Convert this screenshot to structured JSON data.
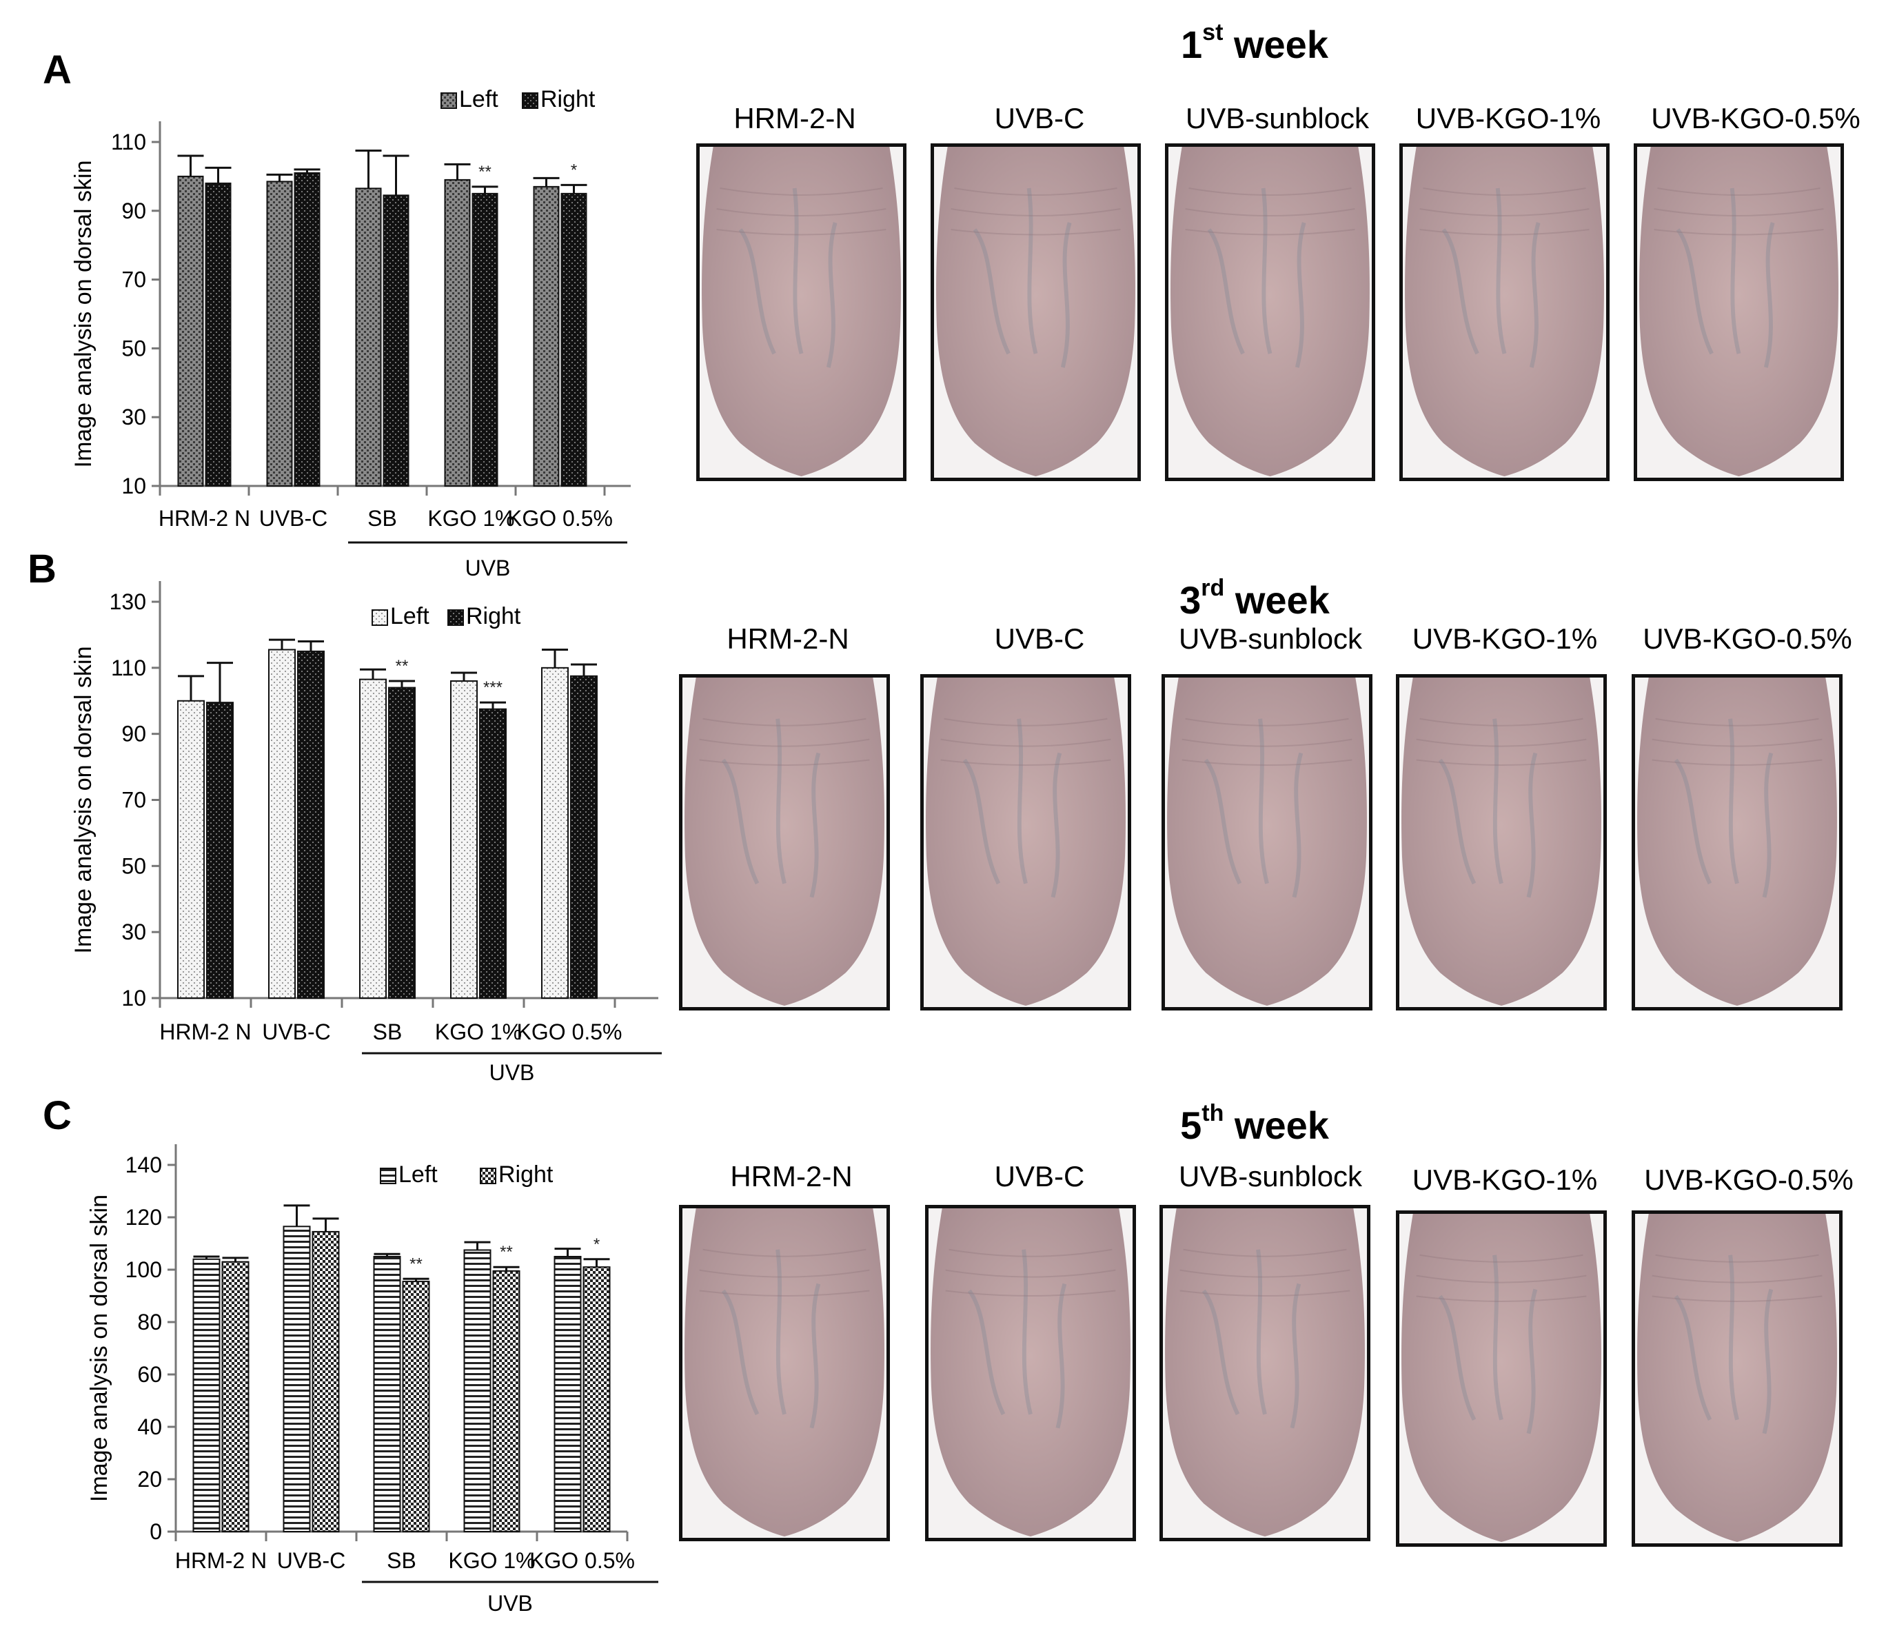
{
  "panels": [
    {
      "letter": "A",
      "week_title": {
        "number": "1",
        "suffix": "st",
        "word": " week"
      },
      "photo_labels": [
        "HRM-2-N",
        "UVB-C",
        "UVB-sunblock",
        "UVB-KGO-1%",
        "UVB-KGO-0.5%"
      ]
    },
    {
      "letter": "B",
      "week_title": {
        "number": "3",
        "suffix": "rd",
        "word": " week"
      },
      "photo_labels": [
        "HRM-2-N",
        "UVB-C",
        "UVB-sunblock",
        "UVB-KGO-1%",
        "UVB-KGO-0.5%"
      ]
    },
    {
      "letter": "C",
      "week_title": {
        "number": "5",
        "suffix": "th",
        "word": " week"
      },
      "photo_labels": [
        "HRM-2-N",
        "UVB-C",
        "UVB-sunblock",
        "UVB-KGO-1%",
        "UVB-KGO-0.5%"
      ]
    }
  ],
  "colors": {
    "skin": "#c9aeae",
    "skin_dark": "#a98e92",
    "vein": "#7d8796",
    "frame": "#111111"
  },
  "chart_data": [
    {
      "type": "bar",
      "panel": "A",
      "ylabel": "Image analysis on dorsal skin",
      "ylim": [
        10,
        110
      ],
      "yticks": [
        10,
        30,
        50,
        70,
        90,
        110
      ],
      "categories": [
        "HRM-2 N",
        "UVB-C",
        "SB",
        "KGO 1%",
        "KGO 0.5%"
      ],
      "group_label": "UVB",
      "grid": false,
      "legend": "top",
      "series": [
        {
          "name": "Left",
          "values": [
            100,
            98.5,
            96.5,
            99,
            97
          ],
          "errors": [
            6,
            2,
            11,
            4.5,
            2.5
          ],
          "pattern": "grey-dots"
        },
        {
          "name": "Right",
          "values": [
            98,
            101,
            94.5,
            95,
            95
          ],
          "errors": [
            4.5,
            1,
            11.5,
            2,
            2.5
          ],
          "pattern": "black-dots"
        }
      ],
      "significance": [
        {
          "category": 3,
          "series": 1,
          "label": "**"
        },
        {
          "category": 4,
          "series": 1,
          "label": "*"
        }
      ]
    },
    {
      "type": "bar",
      "panel": "B",
      "ylabel": "Image analysis on dorsal skin",
      "ylim": [
        10,
        130
      ],
      "yticks": [
        10,
        30,
        50,
        70,
        90,
        110,
        130
      ],
      "categories": [
        "HRM-2 N",
        "UVB-C",
        "SB",
        "KGO 1%",
        "KGO 0.5%"
      ],
      "group_label": "UVB",
      "grid": false,
      "legend": "top",
      "series": [
        {
          "name": "Left",
          "values": [
            100,
            115.5,
            106.5,
            106,
            110
          ],
          "errors": [
            7.5,
            3,
            3,
            2.5,
            5.5
          ],
          "pattern": "white-dots"
        },
        {
          "name": "Right",
          "values": [
            99.5,
            115,
            104,
            97.5,
            107.5
          ],
          "errors": [
            12,
            3,
            2,
            2,
            3.5
          ],
          "pattern": "black-dots"
        }
      ],
      "significance": [
        {
          "category": 2,
          "series": 1,
          "label": "**"
        },
        {
          "category": 3,
          "series": 1,
          "label": "***"
        }
      ]
    },
    {
      "type": "bar",
      "panel": "C",
      "ylabel": "Image analysis on dorsal skin",
      "ylim": [
        0,
        140
      ],
      "yticks": [
        0,
        20,
        40,
        60,
        80,
        100,
        120,
        140
      ],
      "categories": [
        "HRM-2 N",
        "UVB-C",
        "SB",
        "KGO 1%",
        "KGO 0.5%"
      ],
      "group_label": "UVB",
      "grid": false,
      "legend": "top",
      "series": [
        {
          "name": "Left",
          "values": [
            104,
            116.5,
            105,
            107.5,
            105
          ],
          "errors": [
            1,
            8,
            1,
            3,
            3
          ],
          "pattern": "horizontal-lines"
        },
        {
          "name": "Right",
          "values": [
            103,
            114.5,
            95.5,
            99.5,
            101
          ],
          "errors": [
            1.5,
            5,
            1,
            1.5,
            3
          ],
          "pattern": "checker"
        }
      ],
      "significance": [
        {
          "category": 2,
          "series": 1,
          "label": "**"
        },
        {
          "category": 3,
          "series": 1,
          "label": "**"
        },
        {
          "category": 4,
          "series": 1,
          "label": "*"
        }
      ]
    }
  ]
}
